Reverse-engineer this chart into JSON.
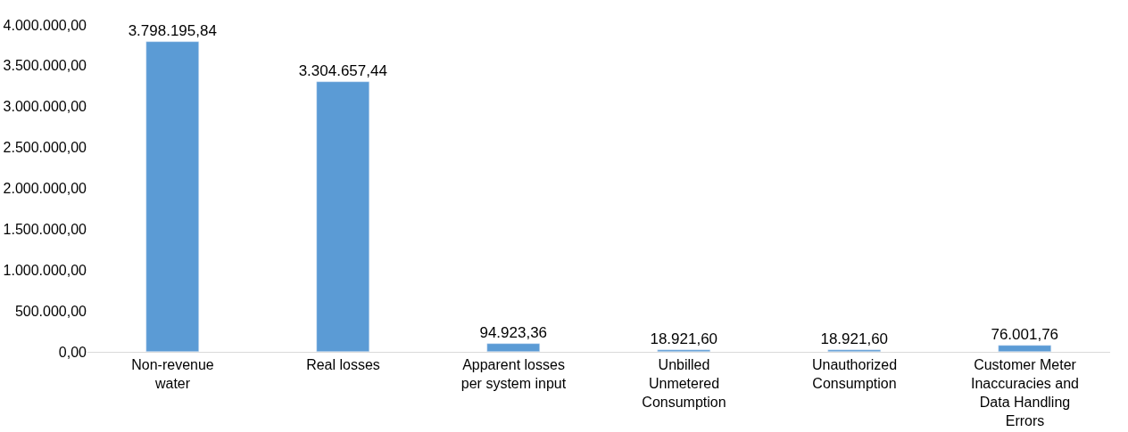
{
  "chart_data": {
    "type": "bar",
    "categories": [
      "Non-revenue water",
      "Real losses",
      "Apparent losses per system input",
      "Unbilled Unmetered Consumption",
      "Unauthorized Consumption",
      "Customer Meter Inaccuracies and Data Handling Errors"
    ],
    "values": [
      3798195.84,
      3304657.44,
      94923.36,
      18921.6,
      18921.6,
      76001.76
    ],
    "value_labels": [
      "3.798.195,84",
      "3.304.657,44",
      "94.923,36",
      "18.921,60",
      "18.921,60",
      "76.001,76"
    ],
    "color": "#5b9bd5",
    "ylim": [
      0,
      4000000
    ],
    "yticks": [
      {
        "value": 0,
        "label": "0,00"
      },
      {
        "value": 500000,
        "label": "500.000,00"
      },
      {
        "value": 1000000,
        "label": "1.000.000,00"
      },
      {
        "value": 1500000,
        "label": "1.500.000,00"
      },
      {
        "value": 2000000,
        "label": "2.000.000,00"
      },
      {
        "value": 2500000,
        "label": "2.500.000,00"
      },
      {
        "value": 3000000,
        "label": "3.000.000,00"
      },
      {
        "value": 3500000,
        "label": "3.500.000,00"
      },
      {
        "value": 4000000,
        "label": "4.000.000,00"
      }
    ],
    "grid": false
  }
}
